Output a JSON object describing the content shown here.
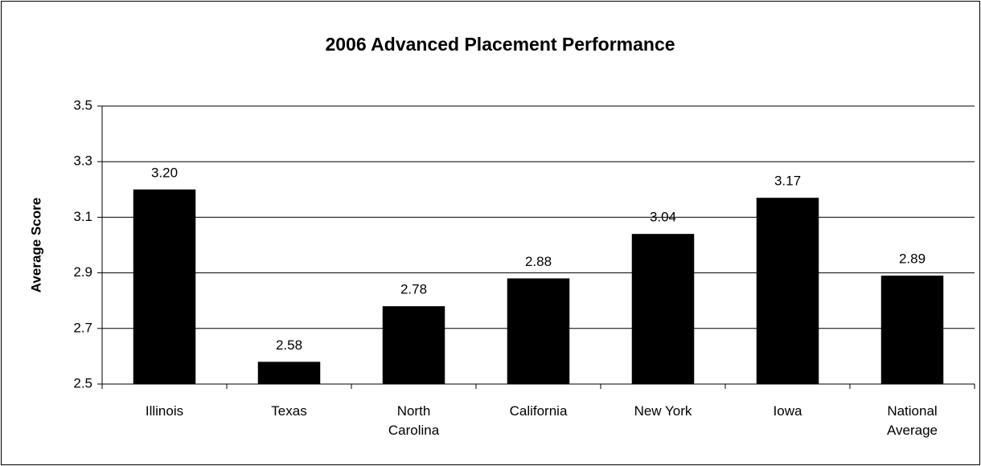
{
  "chart_data": {
    "type": "bar",
    "title": "2006 Advanced Placement Performance",
    "y_label": "Average Score",
    "categories": [
      "Illinois",
      "Texas",
      "North Carolina",
      "California",
      "New York",
      "Iowa",
      "National Average"
    ],
    "values": [
      3.2,
      2.58,
      2.78,
      2.88,
      3.04,
      3.17,
      2.89
    ],
    "value_labels": [
      "3.20",
      "2.58",
      "2.78",
      "2.88",
      "3.04",
      "3.17",
      "2.89"
    ],
    "color": "#000000",
    "ylim": [
      2.5,
      3.5
    ],
    "yticks": [
      2.5,
      2.7,
      2.9,
      3.1,
      3.3,
      3.5
    ],
    "grid": true
  }
}
